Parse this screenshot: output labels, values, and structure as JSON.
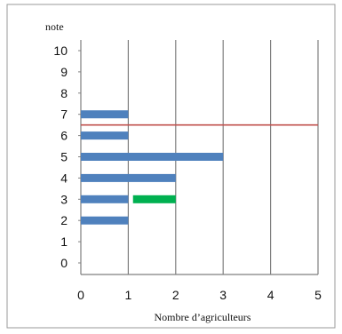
{
  "chart_data": {
    "type": "bar",
    "orientation": "horizontal",
    "ylabel": "note",
    "xlabel": "Nombre d’agriculteurs",
    "y_ticks": [
      "0",
      "1",
      "2",
      "3",
      "4",
      "5",
      "6",
      "7",
      "8",
      "9",
      "10"
    ],
    "x_ticks": [
      "0",
      "1",
      "2",
      "3",
      "4",
      "5"
    ],
    "xlim": [
      0,
      5
    ],
    "ylim": [
      0,
      10
    ],
    "grid": "vertical",
    "bars": [
      {
        "note": 2,
        "start": 0,
        "end": 1,
        "color": "#4F81BD"
      },
      {
        "note": 3,
        "start": 0,
        "end": 1,
        "color": "#4F81BD"
      },
      {
        "note": 4,
        "start": 0,
        "end": 2,
        "color": "#4F81BD"
      },
      {
        "note": 5,
        "start": 0,
        "end": 3,
        "color": "#4F81BD"
      },
      {
        "note": 6,
        "start": 0,
        "end": 1,
        "color": "#4F81BD"
      },
      {
        "note": 7,
        "start": 0,
        "end": 1,
        "color": "#4F81BD"
      },
      {
        "note": 3,
        "start": 1.1,
        "end": 2,
        "color": "#00B050"
      }
    ],
    "reference_line": {
      "note": 6.5,
      "color": "#C0504D"
    }
  }
}
